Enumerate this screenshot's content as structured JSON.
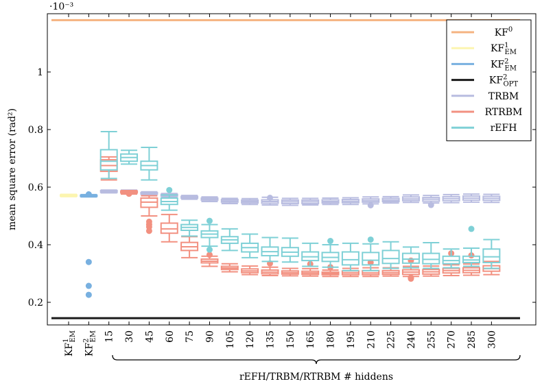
{
  "chart_data": {
    "type": "box",
    "ylabel": "mean square error (rad²)",
    "y_scale_note": "·10⁻³",
    "xlabel": "rEFH/TRBM/RTRBM # hiddens",
    "ylim": [
      0.12,
      1.22
    ],
    "yticks": [
      "0.2",
      "0.4",
      "0.6",
      "0.8",
      "1"
    ],
    "grid": false,
    "legend_position": "top-right",
    "categories": [
      {
        "base": "KF",
        "sup": "1",
        "sub": "EM"
      },
      {
        "base": "KF",
        "sup": "2",
        "sub": "EM"
      },
      {
        "base": "15"
      },
      {
        "base": "30"
      },
      {
        "base": "45"
      },
      {
        "base": "60"
      },
      {
        "base": "75"
      },
      {
        "base": "90"
      },
      {
        "base": "105"
      },
      {
        "base": "120"
      },
      {
        "base": "135"
      },
      {
        "base": "150"
      },
      {
        "base": "165"
      },
      {
        "base": "180"
      },
      {
        "base": "195"
      },
      {
        "base": "210"
      },
      {
        "base": "225"
      },
      {
        "base": "240"
      },
      {
        "base": "255"
      },
      {
        "base": "270"
      },
      {
        "base": "285"
      },
      {
        "base": "300"
      }
    ],
    "legend": [
      {
        "base": "KF",
        "sup": "0",
        "sub": "",
        "color": "#f5b380"
      },
      {
        "base": "KF",
        "sup": "1",
        "sub": "EM",
        "color": "#fcf5b0"
      },
      {
        "base": "KF",
        "sup": "2",
        "sub": "EM",
        "color": "#78b0e0"
      },
      {
        "base": "KF",
        "sup": "2",
        "sub": "OPT",
        "color": "#1a1a1a"
      },
      {
        "base": "TRBM",
        "sup": "",
        "sub": "",
        "color": "#b8bce0"
      },
      {
        "base": "RTRBM",
        "sup": "",
        "sub": "",
        "color": "#f29080"
      },
      {
        "base": "rEFH",
        "sup": "",
        "sub": "",
        "color": "#7ed0d6"
      }
    ],
    "reference_lines": [
      {
        "name": "KF⁰",
        "y": 1.18,
        "color": "#f5b380"
      },
      {
        "name": "KF²_OPT",
        "y": 0.145,
        "color": "#1a1a1a"
      }
    ],
    "kf_boxes": [
      {
        "category": 0,
        "name": "KF¹_EM",
        "color": "#fcf5b0",
        "min": 0.567,
        "q1": 0.569,
        "median": 0.571,
        "q3": 0.573,
        "max": 0.575,
        "outliers": []
      },
      {
        "category": 1,
        "name": "KF²_EM",
        "color": "#78b0e0",
        "min": 0.566,
        "q1": 0.568,
        "median": 0.57,
        "q3": 0.572,
        "max": 0.574,
        "outliers": [
          0.575,
          0.34,
          0.257,
          0.226
        ]
      }
    ],
    "series": [
      {
        "name": "TRBM",
        "color": "#b8bce0",
        "boxes": [
          {
            "min": 0.58,
            "q1": 0.582,
            "median": 0.585,
            "q3": 0.588,
            "max": 0.59,
            "outliers": []
          },
          {
            "min": 0.579,
            "q1": 0.582,
            "median": 0.584,
            "q3": 0.587,
            "max": 0.59,
            "outliers": []
          },
          {
            "min": 0.572,
            "q1": 0.576,
            "median": 0.578,
            "q3": 0.581,
            "max": 0.584,
            "outliers": []
          },
          {
            "min": 0.565,
            "q1": 0.569,
            "median": 0.572,
            "q3": 0.575,
            "max": 0.578,
            "outliers": []
          },
          {
            "min": 0.558,
            "q1": 0.562,
            "median": 0.565,
            "q3": 0.568,
            "max": 0.571,
            "outliers": []
          },
          {
            "min": 0.55,
            "q1": 0.555,
            "median": 0.558,
            "q3": 0.562,
            "max": 0.566,
            "outliers": []
          },
          {
            "min": 0.543,
            "q1": 0.548,
            "median": 0.552,
            "q3": 0.557,
            "max": 0.561,
            "outliers": []
          },
          {
            "min": 0.54,
            "q1": 0.545,
            "median": 0.55,
            "q3": 0.555,
            "max": 0.56,
            "outliers": []
          },
          {
            "min": 0.538,
            "q1": 0.544,
            "median": 0.55,
            "q3": 0.556,
            "max": 0.565,
            "outliers": [
              0.563
            ]
          },
          {
            "min": 0.537,
            "q1": 0.543,
            "median": 0.549,
            "q3": 0.555,
            "max": 0.561,
            "outliers": []
          },
          {
            "min": 0.538,
            "q1": 0.543,
            "median": 0.549,
            "q3": 0.555,
            "max": 0.561,
            "outliers": []
          },
          {
            "min": 0.54,
            "q1": 0.545,
            "median": 0.55,
            "q3": 0.556,
            "max": 0.562,
            "outliers": []
          },
          {
            "min": 0.54,
            "q1": 0.546,
            "median": 0.551,
            "q3": 0.557,
            "max": 0.563,
            "outliers": []
          },
          {
            "min": 0.542,
            "q1": 0.548,
            "median": 0.553,
            "q3": 0.559,
            "max": 0.566,
            "outliers": [
              0.537
            ]
          },
          {
            "min": 0.545,
            "q1": 0.55,
            "median": 0.555,
            "q3": 0.561,
            "max": 0.567,
            "outliers": []
          },
          {
            "min": 0.547,
            "q1": 0.553,
            "median": 0.559,
            "q3": 0.566,
            "max": 0.573,
            "outliers": []
          },
          {
            "min": 0.545,
            "q1": 0.551,
            "median": 0.558,
            "q3": 0.564,
            "max": 0.571,
            "outliers": [
              0.538
            ]
          },
          {
            "min": 0.546,
            "q1": 0.553,
            "median": 0.56,
            "q3": 0.567,
            "max": 0.574,
            "outliers": []
          },
          {
            "min": 0.548,
            "q1": 0.555,
            "median": 0.562,
            "q3": 0.569,
            "max": 0.576,
            "outliers": []
          },
          {
            "min": 0.547,
            "q1": 0.554,
            "median": 0.561,
            "q3": 0.568,
            "max": 0.575,
            "outliers": []
          }
        ]
      },
      {
        "name": "RTRBM",
        "color": "#f29080",
        "boxes": [
          {
            "min": 0.625,
            "q1": 0.655,
            "median": 0.675,
            "q3": 0.695,
            "max": 0.705,
            "outliers": []
          },
          {
            "min": 0.576,
            "q1": 0.58,
            "median": 0.583,
            "q3": 0.586,
            "max": 0.588,
            "outliers": [
              0.577
            ]
          },
          {
            "min": 0.5,
            "q1": 0.53,
            "median": 0.548,
            "q3": 0.562,
            "max": 0.57,
            "outliers": [
              0.48,
              0.47,
              0.462,
              0.448
            ]
          },
          {
            "min": 0.41,
            "q1": 0.44,
            "median": 0.455,
            "q3": 0.475,
            "max": 0.505,
            "outliers": []
          },
          {
            "min": 0.355,
            "q1": 0.38,
            "median": 0.393,
            "q3": 0.408,
            "max": 0.428,
            "outliers": []
          },
          {
            "min": 0.325,
            "q1": 0.337,
            "median": 0.343,
            "q3": 0.35,
            "max": 0.36,
            "outliers": [
              0.365
            ]
          },
          {
            "min": 0.306,
            "q1": 0.314,
            "median": 0.319,
            "q3": 0.325,
            "max": 0.334,
            "outliers": []
          },
          {
            "min": 0.296,
            "q1": 0.303,
            "median": 0.309,
            "q3": 0.316,
            "max": 0.326,
            "outliers": []
          },
          {
            "min": 0.293,
            "q1": 0.299,
            "median": 0.305,
            "q3": 0.312,
            "max": 0.322,
            "outliers": [
              0.335
            ]
          },
          {
            "min": 0.292,
            "q1": 0.298,
            "median": 0.303,
            "q3": 0.309,
            "max": 0.318,
            "outliers": []
          },
          {
            "min": 0.291,
            "q1": 0.297,
            "median": 0.302,
            "q3": 0.308,
            "max": 0.317,
            "outliers": [
              0.333
            ]
          },
          {
            "min": 0.29,
            "q1": 0.296,
            "median": 0.3,
            "q3": 0.305,
            "max": 0.312,
            "outliers": [
              0.322
            ]
          },
          {
            "min": 0.29,
            "q1": 0.296,
            "median": 0.302,
            "q3": 0.309,
            "max": 0.318,
            "outliers": []
          },
          {
            "min": 0.29,
            "q1": 0.296,
            "median": 0.302,
            "q3": 0.31,
            "max": 0.32,
            "outliers": [
              0.338
            ]
          },
          {
            "min": 0.291,
            "q1": 0.297,
            "median": 0.303,
            "q3": 0.31,
            "max": 0.32,
            "outliers": []
          },
          {
            "min": 0.29,
            "q1": 0.297,
            "median": 0.305,
            "q3": 0.313,
            "max": 0.325,
            "outliers": [
              0.345,
              0.286,
              0.282
            ]
          },
          {
            "min": 0.291,
            "q1": 0.298,
            "median": 0.306,
            "q3": 0.314,
            "max": 0.326,
            "outliers": []
          },
          {
            "min": 0.293,
            "q1": 0.302,
            "median": 0.31,
            "q3": 0.318,
            "max": 0.33,
            "outliers": [
              0.37
            ]
          },
          {
            "min": 0.294,
            "q1": 0.303,
            "median": 0.311,
            "q3": 0.32,
            "max": 0.333,
            "outliers": [
              0.363
            ]
          },
          {
            "min": 0.296,
            "q1": 0.308,
            "median": 0.317,
            "q3": 0.327,
            "max": 0.342,
            "outliers": []
          }
        ]
      },
      {
        "name": "rEFH",
        "color": "#7ed0d6",
        "boxes": [
          {
            "min": 0.63,
            "q1": 0.66,
            "median": 0.69,
            "q3": 0.73,
            "max": 0.793,
            "outliers": []
          },
          {
            "min": 0.68,
            "q1": 0.69,
            "median": 0.703,
            "q3": 0.715,
            "max": 0.728,
            "outliers": []
          },
          {
            "min": 0.625,
            "q1": 0.66,
            "median": 0.675,
            "q3": 0.69,
            "max": 0.738,
            "outliers": []
          },
          {
            "min": 0.52,
            "q1": 0.54,
            "median": 0.55,
            "q3": 0.562,
            "max": 0.573,
            "outliers": [
              0.59
            ]
          },
          {
            "min": 0.43,
            "q1": 0.45,
            "median": 0.46,
            "q3": 0.47,
            "max": 0.485,
            "outliers": []
          },
          {
            "min": 0.395,
            "q1": 0.425,
            "median": 0.437,
            "q3": 0.448,
            "max": 0.47,
            "outliers": [
              0.483,
              0.383
            ]
          },
          {
            "min": 0.38,
            "q1": 0.405,
            "median": 0.417,
            "q3": 0.428,
            "max": 0.455,
            "outliers": []
          },
          {
            "min": 0.355,
            "q1": 0.375,
            "median": 0.39,
            "q3": 0.405,
            "max": 0.437,
            "outliers": []
          },
          {
            "min": 0.342,
            "q1": 0.362,
            "median": 0.376,
            "q3": 0.392,
            "max": 0.425,
            "outliers": []
          },
          {
            "min": 0.34,
            "q1": 0.36,
            "median": 0.374,
            "q3": 0.39,
            "max": 0.423,
            "outliers": []
          },
          {
            "min": 0.325,
            "q1": 0.345,
            "median": 0.358,
            "q3": 0.375,
            "max": 0.405,
            "outliers": []
          },
          {
            "min": 0.322,
            "q1": 0.342,
            "median": 0.356,
            "q3": 0.373,
            "max": 0.4,
            "outliers": [
              0.413
            ]
          },
          {
            "min": 0.31,
            "q1": 0.33,
            "median": 0.348,
            "q3": 0.375,
            "max": 0.405,
            "outliers": []
          },
          {
            "min": 0.31,
            "q1": 0.33,
            "median": 0.346,
            "q3": 0.373,
            "max": 0.403,
            "outliers": [
              0.418
            ]
          },
          {
            "min": 0.318,
            "q1": 0.335,
            "median": 0.352,
            "q3": 0.38,
            "max": 0.41,
            "outliers": []
          },
          {
            "min": 0.32,
            "q1": 0.336,
            "median": 0.35,
            "q3": 0.37,
            "max": 0.392,
            "outliers": []
          },
          {
            "min": 0.318,
            "q1": 0.334,
            "median": 0.349,
            "q3": 0.37,
            "max": 0.407,
            "outliers": []
          },
          {
            "min": 0.32,
            "q1": 0.334,
            "median": 0.345,
            "q3": 0.36,
            "max": 0.385,
            "outliers": []
          },
          {
            "min": 0.325,
            "q1": 0.338,
            "median": 0.347,
            "q3": 0.36,
            "max": 0.388,
            "outliers": [
              0.455
            ]
          },
          {
            "min": 0.318,
            "q1": 0.338,
            "median": 0.358,
            "q3": 0.385,
            "max": 0.418,
            "outliers": []
          }
        ]
      }
    ]
  }
}
